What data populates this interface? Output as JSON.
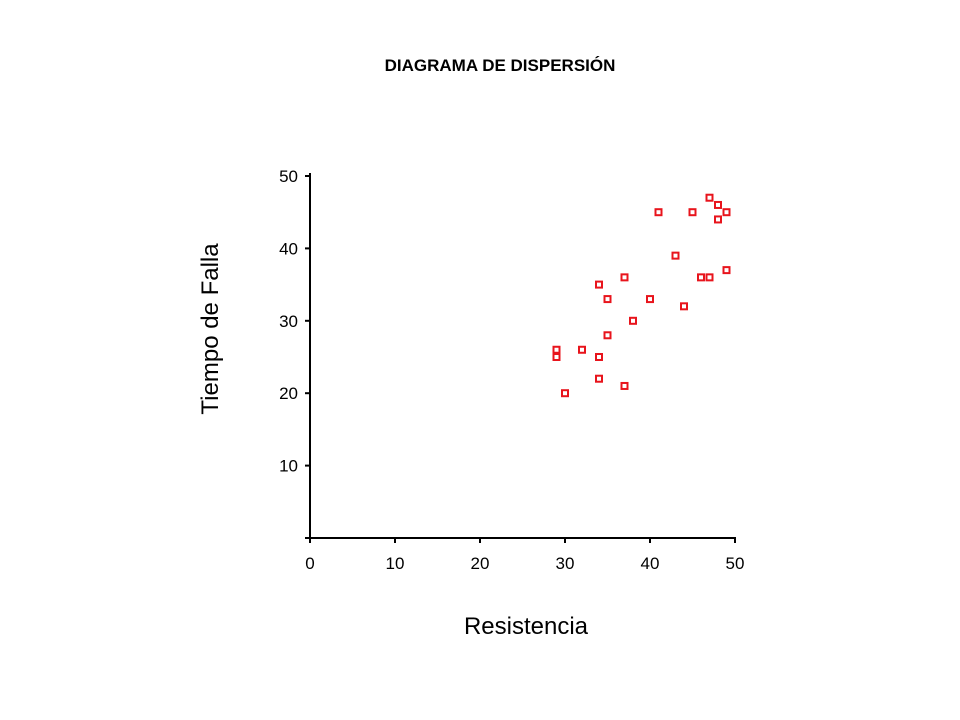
{
  "chart_data": {
    "type": "scatter",
    "title": "DIAGRAMA DE DISPERSIÓN",
    "xlabel": "Resistencia",
    "ylabel": "Tiempo de Falla",
    "xlim": [
      0,
      50
    ],
    "ylim": [
      0,
      50
    ],
    "x_ticks": [
      "0",
      "10",
      "20",
      "30",
      "40",
      "50"
    ],
    "y_ticks": [
      "10",
      "20",
      "30",
      "40",
      "50"
    ],
    "grid": false,
    "marker": "square",
    "marker_color": "#e8141c",
    "points": [
      {
        "x": 29,
        "y": 26
      },
      {
        "x": 29,
        "y": 25
      },
      {
        "x": 30,
        "y": 20
      },
      {
        "x": 32,
        "y": 26
      },
      {
        "x": 34,
        "y": 35
      },
      {
        "x": 34,
        "y": 25
      },
      {
        "x": 34,
        "y": 22
      },
      {
        "x": 35,
        "y": 33
      },
      {
        "x": 35,
        "y": 28
      },
      {
        "x": 37,
        "y": 36
      },
      {
        "x": 37,
        "y": 21
      },
      {
        "x": 38,
        "y": 30
      },
      {
        "x": 40,
        "y": 33
      },
      {
        "x": 41,
        "y": 45
      },
      {
        "x": 43,
        "y": 39
      },
      {
        "x": 44,
        "y": 32
      },
      {
        "x": 45,
        "y": 45
      },
      {
        "x": 46,
        "y": 36
      },
      {
        "x": 47,
        "y": 36
      },
      {
        "x": 47,
        "y": 47
      },
      {
        "x": 48,
        "y": 46
      },
      {
        "x": 48,
        "y": 44
      },
      {
        "x": 49,
        "y": 45
      },
      {
        "x": 49,
        "y": 37
      }
    ]
  }
}
